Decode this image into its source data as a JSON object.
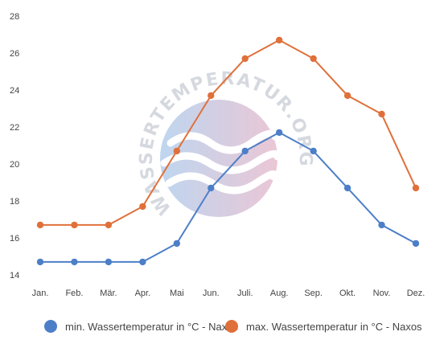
{
  "chart_data": {
    "type": "line",
    "categories": [
      "Jan.",
      "Feb.",
      "Mär.",
      "Apr.",
      "Mai",
      "Jun.",
      "Juli.",
      "Aug.",
      "Sep.",
      "Okt.",
      "Nov.",
      "Dez."
    ],
    "series": [
      {
        "name": "min. Wassertemperatur in °C - Naxos",
        "color": "#4d7fc8",
        "values": [
          14.7,
          14.7,
          14.7,
          14.7,
          15.7,
          18.7,
          20.7,
          21.7,
          20.7,
          18.7,
          16.7,
          15.7
        ]
      },
      {
        "name": "max. Wassertemperatur in °C - Naxos",
        "color": "#e0703a",
        "values": [
          16.7,
          16.7,
          16.7,
          17.7,
          20.7,
          23.7,
          25.7,
          26.7,
          25.7,
          23.7,
          22.7,
          18.7
        ]
      }
    ],
    "y_ticks": [
      14,
      16,
      18,
      20,
      22,
      24,
      26,
      28
    ],
    "ylim": [
      14,
      28
    ],
    "title": "",
    "xlabel": "",
    "ylabel": "",
    "grid": false,
    "legend_position": "bottom"
  },
  "watermark": {
    "text": "WASSERTEMPERATUR.ORG"
  }
}
